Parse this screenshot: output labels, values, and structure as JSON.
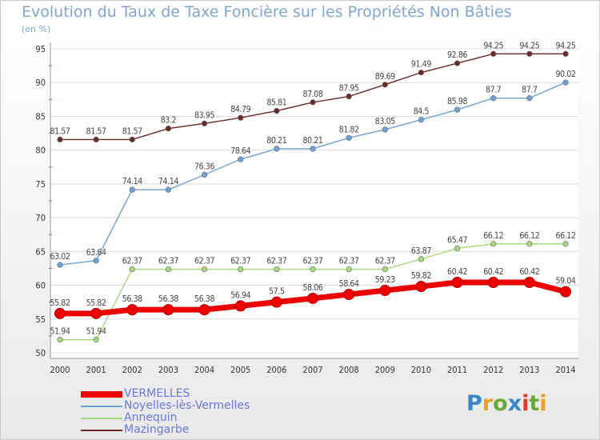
{
  "header": {
    "title": "Evolution du Taux de Taxe Foncière sur les Propriétés Non Bâties",
    "unit": "(en %)"
  },
  "brand": {
    "text": "Proxiti"
  },
  "chart_data": {
    "type": "line",
    "title": "Evolution du Taux de Taxe Foncière sur les Propriétés Non Bâties",
    "ylabel": "(en %)",
    "xlabel": "",
    "x": [
      "2000",
      "2001",
      "2002",
      "2003",
      "2004",
      "2005",
      "2006",
      "2007",
      "2008",
      "2009",
      "2010",
      "2011",
      "2012",
      "2013",
      "2014"
    ],
    "ylim": [
      50,
      95
    ],
    "yticks": [
      "50",
      "55",
      "60",
      "65",
      "70",
      "75",
      "80",
      "85",
      "90",
      "95"
    ],
    "grid": "horizontal",
    "legend_position": "bottom-left",
    "series": [
      {
        "name": "Mazingarbe",
        "color": "#6b2a2a",
        "values": [
          81.57,
          81.57,
          81.57,
          83.2,
          83.95,
          84.79,
          85.81,
          87.08,
          87.95,
          89.69,
          91.49,
          92.86,
          94.25,
          94.25,
          94.25
        ],
        "labels": [
          "81.57",
          "81.57",
          "81.57",
          "83.2",
          "83.95",
          "84.79",
          "85.81",
          "87.08",
          "87.95",
          "89.69",
          "91.49",
          "92.86",
          "94.25",
          "94.25",
          "94.25"
        ]
      },
      {
        "name": "Noyelles-lès-Vermelles",
        "color": "#6fa1d6",
        "values": [
          63.02,
          63.64,
          74.14,
          74.14,
          76.36,
          78.64,
          80.21,
          80.21,
          81.82,
          83.05,
          84.5,
          85.98,
          87.7,
          87.7,
          90.02
        ],
        "labels": [
          "63.02",
          "63.64",
          "74.14",
          "74.14",
          "76.36",
          "78.64",
          "80.21",
          "80.21",
          "81.82",
          "83.05",
          "84.5",
          "85.98",
          "87.7",
          "87.7",
          "90.02"
        ]
      },
      {
        "name": "Annequin",
        "color": "#a6d97a",
        "values": [
          51.94,
          51.94,
          62.37,
          62.37,
          62.37,
          62.37,
          62.37,
          62.37,
          62.37,
          62.37,
          63.87,
          65.47,
          66.12,
          66.12,
          66.12
        ],
        "labels": [
          "51.94",
          "51.94",
          "62.37",
          "62.37",
          "62.37",
          "62.37",
          "62.37",
          "62.37",
          "62.37",
          "62.37",
          "63.87",
          "65.47",
          "66.12",
          "66.12",
          "66.12"
        ]
      },
      {
        "name": "VERMELLES",
        "color": "#ee0000",
        "values": [
          55.82,
          55.82,
          56.38,
          56.38,
          56.38,
          56.94,
          57.5,
          58.06,
          58.64,
          59.23,
          59.82,
          60.42,
          60.42,
          60.42,
          59.04
        ],
        "labels": [
          "55.82",
          "55.82",
          "56.38",
          "56.38",
          "56.38",
          "56.94",
          "57.5",
          "58.06",
          "58.64",
          "59.23",
          "59.82",
          "60.42",
          "60.42",
          "60.42",
          "59.04"
        ]
      }
    ],
    "legend": [
      "VERMELLES",
      "Noyelles-lès-Vermelles",
      "Annequin",
      "Mazingarbe"
    ]
  }
}
